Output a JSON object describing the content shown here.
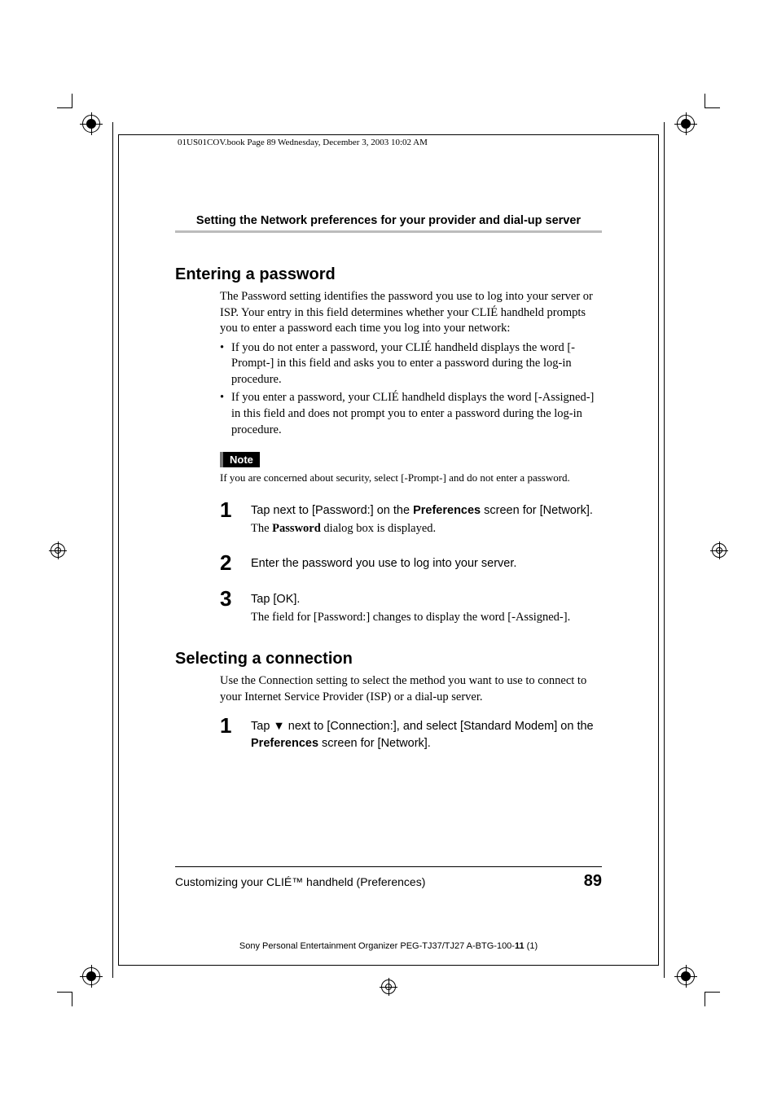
{
  "book_header": "01US01COV.book  Page 89  Wednesday, December 3, 2003  10:02 AM",
  "section_header": "Setting the Network preferences for your provider and dial-up server",
  "sub1": {
    "title": "Entering a password",
    "intro": "The Password setting identifies the password you use to log into your server or ISP. Your entry in this field determines whether your CLIÉ handheld prompts you to enter a password each time you log into your network:",
    "bullets": [
      "If you do not enter a password, your CLIÉ handheld displays the word [-Prompt-] in this field and asks you to enter a password during the log-in procedure.",
      "If you enter a password, your CLIÉ handheld displays the word [-Assigned-] in this field and does not prompt you to enter a password during the log-in procedure."
    ],
    "note_label": "Note",
    "note_text": "If you are concerned about security, select [-Prompt-] and do not enter a password.",
    "steps": [
      {
        "num": "1",
        "html": "Tap next to [Password:] on the <b>Preferences</b> screen for [Network].",
        "sub_html": "The <b>Password</b> dialog box is displayed."
      },
      {
        "num": "2",
        "html": "Enter the password you use to log into your server.",
        "sub_html": ""
      },
      {
        "num": "3",
        "html": "Tap [OK].",
        "sub_html": "The field for [Password:] changes to display the word [-Assigned-]."
      }
    ]
  },
  "sub2": {
    "title": "Selecting a connection",
    "intro": "Use the Connection setting to select the method you want to use to connect to your Internet Service Provider (ISP) or a dial-up server.",
    "steps": [
      {
        "num": "1",
        "html": "Tap ▼ next to [Connection:], and select [Standard Modem] on the <b>Preferences</b> screen for [Network].",
        "sub_html": ""
      }
    ]
  },
  "footer": {
    "chapter": "Customizing your CLIÉ™ handheld (Preferences)",
    "page": "89",
    "imprint_pre": "Sony Personal Entertainment Organizer  PEG-TJ37/TJ27  A-BTG-100-",
    "imprint_bold": "11",
    "imprint_post": " (1)"
  }
}
